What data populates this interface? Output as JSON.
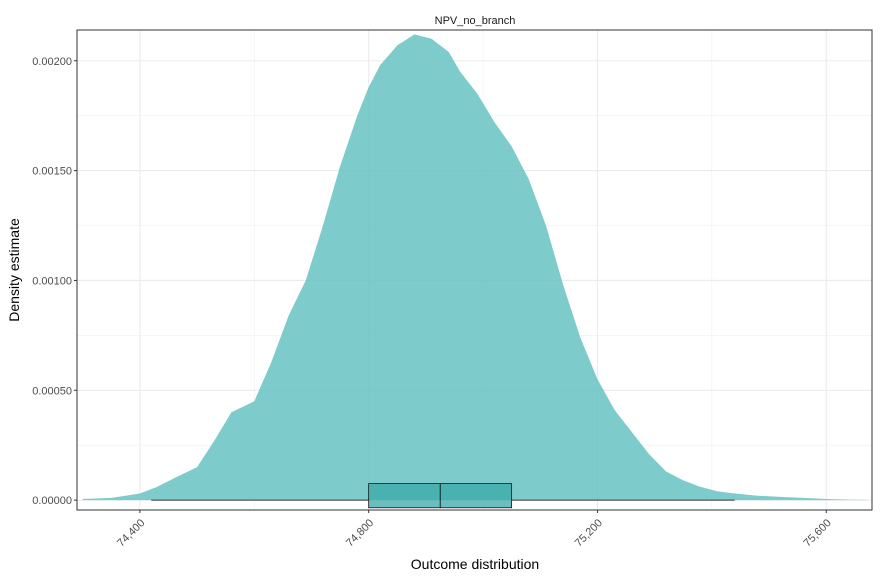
{
  "chart_data": {
    "type": "area",
    "title": "NPV_no_branch",
    "xlabel": "Outcome distribution",
    "ylabel": "Density estimate",
    "xlim": [
      74290,
      75680
    ],
    "ylim": [
      -4.5e-05,
      0.00214
    ],
    "x_ticks": [
      74400,
      74800,
      75200,
      75600
    ],
    "x_tick_labels": [
      "74,400",
      "74,800",
      "75,200",
      "75,600"
    ],
    "y_ticks": [
      0,
      0.0005,
      0.001,
      0.0015,
      0.002
    ],
    "y_tick_labels": [
      "0.00000",
      "0.00050",
      "0.00100",
      "0.00150",
      "0.00200"
    ],
    "grid": true,
    "density_color": "#66c2c2",
    "box_fill": "#3aa8a8",
    "outline_color": "#000000",
    "density_curve": {
      "x": [
        74300,
        74350,
        74400,
        74430,
        74460,
        74500,
        74530,
        74560,
        74600,
        74630,
        74660,
        74690,
        74720,
        74750,
        74780,
        74800,
        74820,
        74850,
        74880,
        74910,
        74940,
        74960,
        74990,
        75020,
        75050,
        75080,
        75110,
        75140,
        75170,
        75200,
        75230,
        75260,
        75290,
        75320,
        75350,
        75380,
        75410,
        75440,
        75480,
        75520,
        75560,
        75600,
        75640,
        75670
      ],
      "y": [
        5e-06,
        1e-05,
        3e-05,
        6e-05,
        0.0001,
        0.00015,
        0.00027,
        0.0004,
        0.00045,
        0.00063,
        0.00084,
        0.001,
        0.00125,
        0.00152,
        0.00175,
        0.00188,
        0.00198,
        0.00207,
        0.00212,
        0.0021,
        0.00204,
        0.00195,
        0.00185,
        0.00172,
        0.00161,
        0.00146,
        0.00125,
        0.00098,
        0.00074,
        0.00055,
        0.00041,
        0.00031,
        0.00021,
        0.00013,
        9e-05,
        6e-05,
        4e-05,
        3e-05,
        2e-05,
        1.5e-05,
        1e-05,
        5e-06,
        2e-06,
        1e-06
      ]
    },
    "boxplot": {
      "whisker_low": 74420,
      "q1": 74800,
      "median": 74925,
      "q3": 75050,
      "whisker_high": 75440,
      "box_bottom": -3.5e-05,
      "box_top": 7.5e-05
    }
  }
}
